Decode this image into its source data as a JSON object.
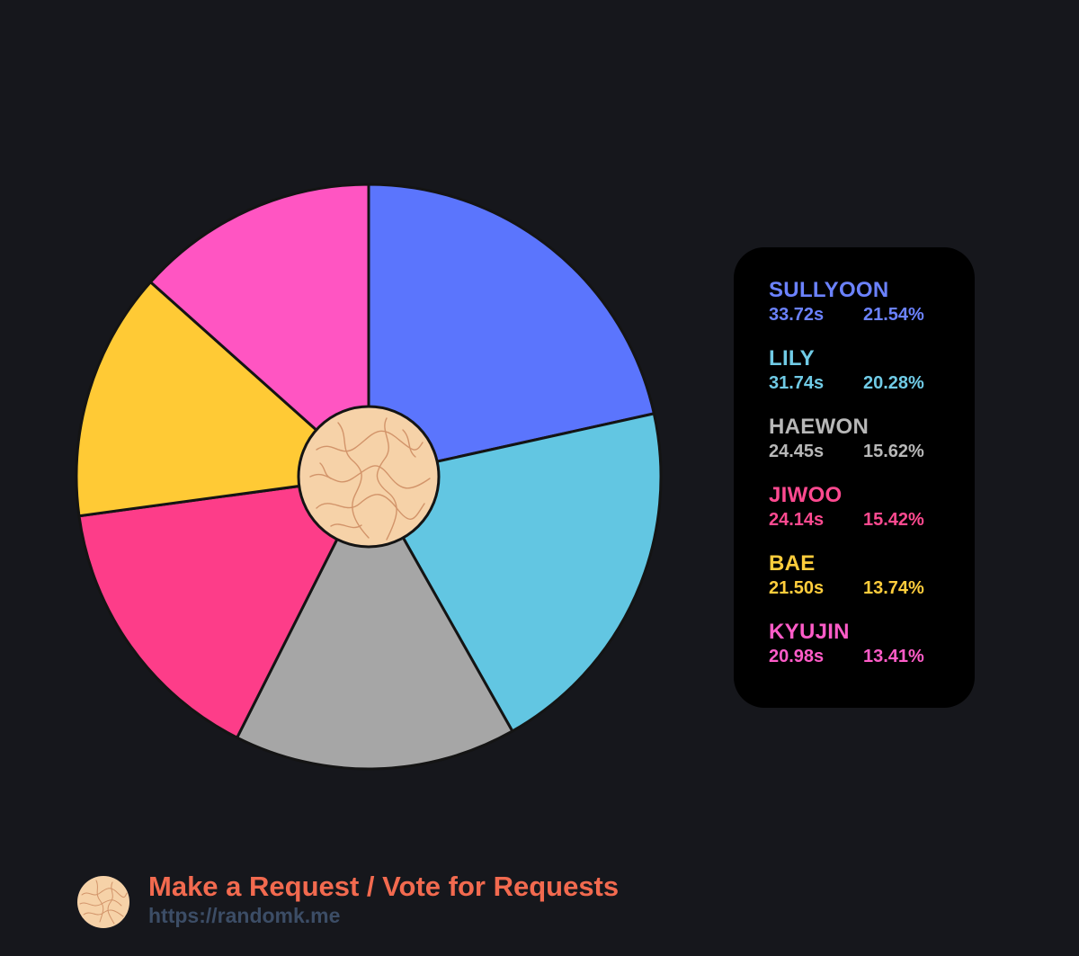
{
  "chart_data": {
    "type": "pie",
    "donut_center": "logo",
    "slices": [
      {
        "label": "SULLYOON",
        "time": "33.72s",
        "percent_label": "21.54%",
        "value": 21.54,
        "color": "#5b75fd"
      },
      {
        "label": "LILY",
        "time": "31.74s",
        "percent_label": "20.28%",
        "value": 20.28,
        "color": "#62c6e2"
      },
      {
        "label": "HAEWON",
        "time": "24.45s",
        "percent_label": "15.62%",
        "value": 15.62,
        "color": "#a6a6a6"
      },
      {
        "label": "JIWOO",
        "time": "24.14s",
        "percent_label": "15.42%",
        "value": 15.42,
        "color": "#fd3d89"
      },
      {
        "label": "BAE",
        "time": "21.50s",
        "percent_label": "13.74%",
        "value": 13.74,
        "color": "#ffca35"
      },
      {
        "label": "KYUJIN",
        "time": "20.98s",
        "percent_label": "13.41%",
        "value": 13.41,
        "color": "#ff55c2"
      }
    ],
    "start_angle": "top (12 o'clock), clockwise",
    "legend_placement": "right"
  },
  "legend_text_colors": {
    "SULLYOON": "#6b82ff",
    "LILY": "#70cbe6",
    "HAEWON": "#b8b8b8",
    "JIWOO": "#ff4a90",
    "BAE": "#ffcd3c",
    "KYUJIN": "#ff5cc8"
  },
  "footer": {
    "title": "Make a Request / Vote for Requests",
    "url": "https://randomk.me"
  },
  "colors": {
    "background": "#16171c",
    "legend_background": "#000000",
    "logo_fill": "#f6d2a8",
    "logo_lines": "#d2946a",
    "footer_title": "#f26a4f",
    "footer_url": "#3c4d66"
  }
}
